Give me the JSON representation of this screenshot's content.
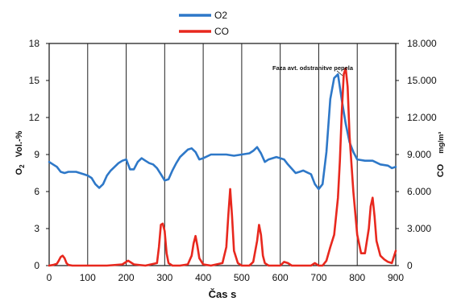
{
  "chart_data": {
    "type": "line",
    "xlabel": "Čas  s",
    "ylabel_left_main": "O",
    "ylabel_left_sub": "2",
    "ylabel_left_unit": "Vol.-%",
    "ylabel_right_main": "CO",
    "ylabel_right_unit": "mg/m³",
    "annotation": "Faza avt. odstranitve pepela",
    "xlim": [
      0,
      900
    ],
    "ylim_left": [
      0,
      18
    ],
    "ylim_right": [
      0,
      18000
    ],
    "x_ticks": [
      "0",
      "100",
      "200",
      "300",
      "400",
      "500",
      "600",
      "700",
      "800",
      "900"
    ],
    "y_left_ticks": [
      "0",
      "3",
      "6",
      "9",
      "12",
      "15",
      "18"
    ],
    "y_right_ticks": [
      "0",
      "3.000",
      "6.000",
      "9.000",
      "12.000",
      "15.000",
      "18.000"
    ],
    "grid": "vertical",
    "legend_position": "top-center",
    "series": [
      {
        "name": "O2",
        "axis": "left",
        "color": "#2e78c8",
        "x": [
          0,
          10,
          20,
          30,
          40,
          50,
          70,
          90,
          100,
          110,
          120,
          130,
          140,
          150,
          160,
          170,
          180,
          190,
          200,
          210,
          220,
          230,
          240,
          250,
          260,
          270,
          280,
          290,
          300,
          310,
          320,
          330,
          340,
          350,
          360,
          370,
          380,
          390,
          400,
          420,
          440,
          460,
          480,
          500,
          520,
          530,
          540,
          550,
          560,
          570,
          580,
          590,
          600,
          610,
          620,
          640,
          650,
          660,
          680,
          690,
          700,
          710,
          720,
          730,
          740,
          750,
          760,
          770,
          780,
          790,
          800,
          820,
          840,
          860,
          880,
          890,
          900
        ],
        "values": [
          8.4,
          8.2,
          8.0,
          7.6,
          7.5,
          7.6,
          7.6,
          7.4,
          7.3,
          7.1,
          6.6,
          6.3,
          6.6,
          7.3,
          7.7,
          8.0,
          8.3,
          8.5,
          8.6,
          7.8,
          7.8,
          8.4,
          8.7,
          8.5,
          8.3,
          8.2,
          7.9,
          7.4,
          6.9,
          7.0,
          7.7,
          8.3,
          8.8,
          9.1,
          9.4,
          9.5,
          9.2,
          8.6,
          8.7,
          9.0,
          9.0,
          9.0,
          8.9,
          9.0,
          9.1,
          9.3,
          9.6,
          9.1,
          8.4,
          8.6,
          8.7,
          8.8,
          8.7,
          8.6,
          8.2,
          7.5,
          7.6,
          7.7,
          7.4,
          6.6,
          6.2,
          6.6,
          9.2,
          13.5,
          15.2,
          15.5,
          13.4,
          11.5,
          10.0,
          9.2,
          8.6,
          8.5,
          8.5,
          8.2,
          8.1,
          7.9,
          8.0
        ]
      },
      {
        "name": "CO",
        "axis": "right",
        "color": "#e8281e",
        "x": [
          0,
          10,
          20,
          25,
          30,
          35,
          40,
          45,
          50,
          60,
          100,
          150,
          190,
          200,
          205,
          210,
          220,
          250,
          280,
          285,
          290,
          295,
          300,
          305,
          310,
          320,
          340,
          360,
          370,
          375,
          380,
          385,
          390,
          400,
          420,
          450,
          460,
          465,
          470,
          475,
          480,
          490,
          500,
          520,
          530,
          540,
          545,
          550,
          555,
          560,
          570,
          600,
          610,
          620,
          630,
          680,
          690,
          700,
          710,
          720,
          730,
          740,
          750,
          755,
          760,
          765,
          770,
          775,
          780,
          790,
          800,
          810,
          820,
          830,
          835,
          840,
          845,
          850,
          860,
          870,
          880,
          890,
          900
        ],
        "values": [
          0,
          50,
          150,
          400,
          700,
          800,
          600,
          200,
          50,
          0,
          0,
          0,
          100,
          300,
          400,
          300,
          100,
          0,
          200,
          1500,
          3300,
          3400,
          2800,
          1000,
          200,
          0,
          0,
          100,
          800,
          1800,
          2400,
          1600,
          600,
          100,
          0,
          200,
          1500,
          4000,
          6200,
          4000,
          1200,
          200,
          0,
          0,
          300,
          2000,
          3300,
          2500,
          800,
          200,
          0,
          0,
          300,
          200,
          0,
          0,
          200,
          0,
          0,
          400,
          1500,
          2500,
          5500,
          8500,
          12500,
          15500,
          16000,
          14500,
          10500,
          6000,
          2500,
          1000,
          1000,
          3000,
          4800,
          5500,
          4000,
          2000,
          800,
          500,
          300,
          200,
          1200
        ]
      }
    ]
  }
}
